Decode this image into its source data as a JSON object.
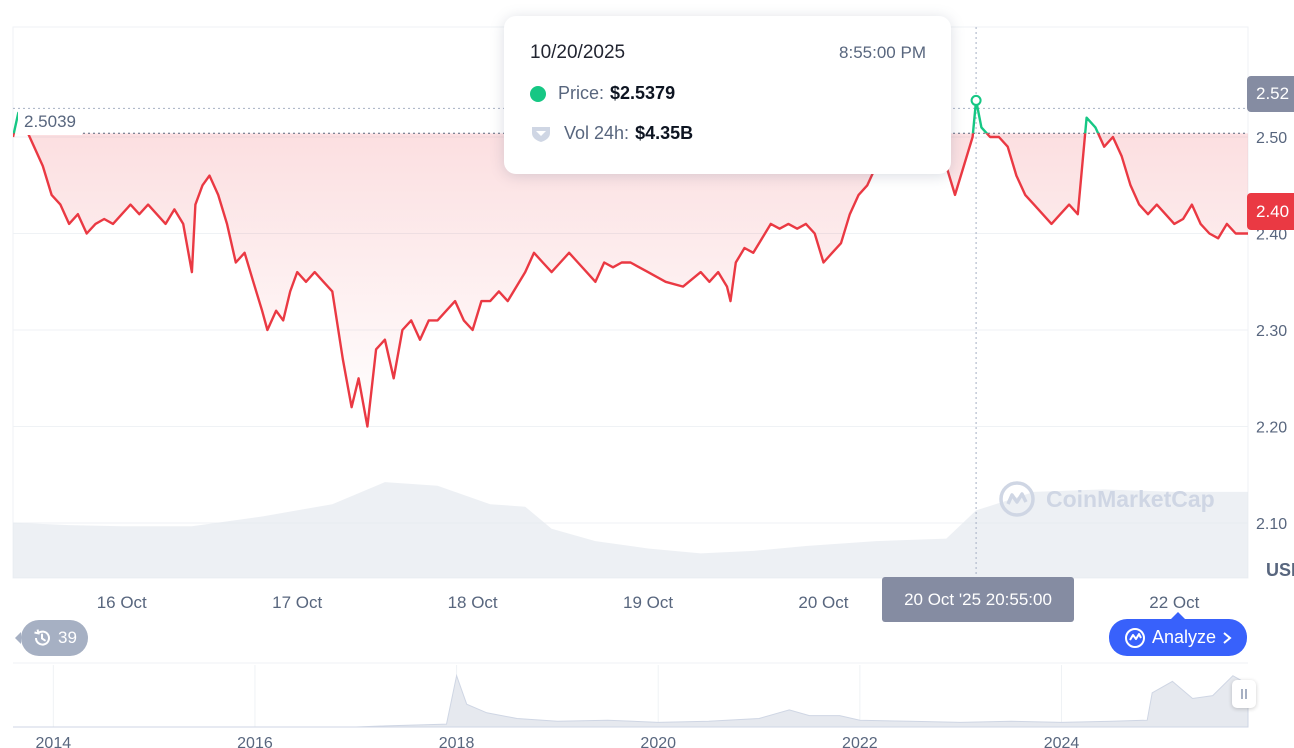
{
  "tooltip": {
    "date": "10/20/2025",
    "time": "8:55:00 PM",
    "price_label": "Price:",
    "price_value": "$2.5379",
    "vol_label": "Vol 24h:",
    "vol_value": "$4.35B"
  },
  "reference_price_label": "2.5039",
  "current_price_label": "2.40",
  "hover_price_label": "2.52",
  "crosshair_time_label": "20 Oct '25 20:55:00",
  "currency_label": "USD",
  "history_count": "39",
  "analyze_label": "Analyze",
  "watermark": "CoinMarketCap",
  "colors": {
    "up": "#16c784",
    "down": "#ea3943",
    "accent": "#3861fb"
  },
  "icons": {
    "history": "history-icon",
    "analyze": "analyze-icon",
    "chevron": "chevron-right-icon",
    "volume": "volume-icon"
  },
  "chart_data": {
    "type": "line",
    "y_ticks": [
      "2.50",
      "2.40",
      "2.30",
      "2.20",
      "2.10"
    ],
    "y_tick_values": [
      2.5,
      2.4,
      2.3,
      2.2,
      2.1
    ],
    "ylim": [
      2.043,
      2.614
    ],
    "x_ticks": [
      "16 Oct",
      "17 Oct",
      "18 Oct",
      "19 Oct",
      "20 Oct",
      "22 Oct"
    ],
    "x_tick_days": [
      16,
      17,
      18,
      19,
      20,
      22
    ],
    "xlim_days": [
      15.38,
      22.42
    ],
    "reference_price": 2.5039,
    "hover": {
      "day": 20.87,
      "price": 2.5379
    },
    "price_series": [
      [
        15.38,
        2.5
      ],
      [
        15.41,
        2.525
      ],
      [
        15.45,
        2.51
      ],
      [
        15.5,
        2.49
      ],
      [
        15.55,
        2.47
      ],
      [
        15.6,
        2.44
      ],
      [
        15.65,
        2.43
      ],
      [
        15.7,
        2.41
      ],
      [
        15.75,
        2.42
      ],
      [
        15.8,
        2.4
      ],
      [
        15.85,
        2.41
      ],
      [
        15.9,
        2.415
      ],
      [
        15.95,
        2.41
      ],
      [
        16.0,
        2.42
      ],
      [
        16.05,
        2.43
      ],
      [
        16.1,
        2.42
      ],
      [
        16.15,
        2.43
      ],
      [
        16.2,
        2.42
      ],
      [
        16.25,
        2.41
      ],
      [
        16.3,
        2.425
      ],
      [
        16.35,
        2.41
      ],
      [
        16.4,
        2.36
      ],
      [
        16.42,
        2.43
      ],
      [
        16.46,
        2.45
      ],
      [
        16.5,
        2.46
      ],
      [
        16.55,
        2.44
      ],
      [
        16.6,
        2.41
      ],
      [
        16.65,
        2.37
      ],
      [
        16.7,
        2.38
      ],
      [
        16.75,
        2.35
      ],
      [
        16.8,
        2.32
      ],
      [
        16.83,
        2.3
      ],
      [
        16.88,
        2.32
      ],
      [
        16.92,
        2.31
      ],
      [
        16.96,
        2.34
      ],
      [
        17.0,
        2.36
      ],
      [
        17.05,
        2.35
      ],
      [
        17.1,
        2.36
      ],
      [
        17.15,
        2.35
      ],
      [
        17.2,
        2.34
      ],
      [
        17.26,
        2.27
      ],
      [
        17.31,
        2.22
      ],
      [
        17.35,
        2.25
      ],
      [
        17.4,
        2.2
      ],
      [
        17.45,
        2.28
      ],
      [
        17.5,
        2.29
      ],
      [
        17.55,
        2.25
      ],
      [
        17.6,
        2.3
      ],
      [
        17.65,
        2.31
      ],
      [
        17.7,
        2.29
      ],
      [
        17.75,
        2.31
      ],
      [
        17.8,
        2.31
      ],
      [
        17.85,
        2.32
      ],
      [
        17.9,
        2.33
      ],
      [
        17.95,
        2.31
      ],
      [
        18.0,
        2.3
      ],
      [
        18.05,
        2.33
      ],
      [
        18.1,
        2.33
      ],
      [
        18.15,
        2.34
      ],
      [
        18.2,
        2.33
      ],
      [
        18.3,
        2.36
      ],
      [
        18.35,
        2.38
      ],
      [
        18.4,
        2.37
      ],
      [
        18.45,
        2.36
      ],
      [
        18.5,
        2.37
      ],
      [
        18.55,
        2.38
      ],
      [
        18.6,
        2.37
      ],
      [
        18.65,
        2.36
      ],
      [
        18.7,
        2.35
      ],
      [
        18.75,
        2.37
      ],
      [
        18.8,
        2.365
      ],
      [
        18.85,
        2.37
      ],
      [
        18.9,
        2.37
      ],
      [
        19.0,
        2.36
      ],
      [
        19.05,
        2.355
      ],
      [
        19.1,
        2.35
      ],
      [
        19.2,
        2.345
      ],
      [
        19.3,
        2.36
      ],
      [
        19.35,
        2.35
      ],
      [
        19.4,
        2.36
      ],
      [
        19.45,
        2.345
      ],
      [
        19.47,
        2.33
      ],
      [
        19.5,
        2.37
      ],
      [
        19.55,
        2.385
      ],
      [
        19.6,
        2.38
      ],
      [
        19.65,
        2.395
      ],
      [
        19.7,
        2.41
      ],
      [
        19.75,
        2.405
      ],
      [
        19.8,
        2.41
      ],
      [
        19.85,
        2.405
      ],
      [
        19.9,
        2.41
      ],
      [
        19.95,
        2.4
      ],
      [
        20.0,
        2.37
      ],
      [
        20.05,
        2.38
      ],
      [
        20.1,
        2.39
      ],
      [
        20.15,
        2.42
      ],
      [
        20.2,
        2.44
      ],
      [
        20.25,
        2.45
      ],
      [
        20.3,
        2.47
      ],
      [
        20.4,
        2.48
      ],
      [
        20.5,
        2.49
      ],
      [
        20.6,
        2.5
      ],
      [
        20.7,
        2.47
      ],
      [
        20.75,
        2.44
      ],
      [
        20.8,
        2.47
      ],
      [
        20.85,
        2.5
      ],
      [
        20.87,
        2.5379
      ],
      [
        20.9,
        2.51
      ],
      [
        20.95,
        2.5
      ],
      [
        21.0,
        2.5
      ],
      [
        21.05,
        2.49
      ],
      [
        21.1,
        2.46
      ],
      [
        21.15,
        2.44
      ],
      [
        21.2,
        2.43
      ],
      [
        21.3,
        2.41
      ],
      [
        21.35,
        2.42
      ],
      [
        21.4,
        2.43
      ],
      [
        21.45,
        2.42
      ],
      [
        21.5,
        2.52
      ],
      [
        21.55,
        2.51
      ],
      [
        21.6,
        2.49
      ],
      [
        21.65,
        2.5
      ],
      [
        21.7,
        2.48
      ],
      [
        21.75,
        2.45
      ],
      [
        21.8,
        2.43
      ],
      [
        21.85,
        2.42
      ],
      [
        21.9,
        2.43
      ],
      [
        21.95,
        2.42
      ],
      [
        22.0,
        2.41
      ],
      [
        22.05,
        2.415
      ],
      [
        22.1,
        2.43
      ],
      [
        22.15,
        2.41
      ],
      [
        22.2,
        2.4
      ],
      [
        22.25,
        2.395
      ],
      [
        22.3,
        2.41
      ],
      [
        22.35,
        2.4
      ],
      [
        22.42,
        2.4
      ]
    ],
    "volume_series": [
      [
        15.38,
        0.45
      ],
      [
        15.7,
        0.43
      ],
      [
        16.0,
        0.42
      ],
      [
        16.4,
        0.42
      ],
      [
        16.8,
        0.5
      ],
      [
        17.2,
        0.6
      ],
      [
        17.5,
        0.78
      ],
      [
        17.8,
        0.75
      ],
      [
        18.1,
        0.6
      ],
      [
        18.3,
        0.58
      ],
      [
        18.45,
        0.4
      ],
      [
        18.7,
        0.3
      ],
      [
        19.0,
        0.24
      ],
      [
        19.3,
        0.2
      ],
      [
        19.6,
        0.22
      ],
      [
        19.9,
        0.26
      ],
      [
        20.3,
        0.3
      ],
      [
        20.7,
        0.32
      ],
      [
        20.87,
        0.55
      ],
      [
        21.2,
        0.7
      ],
      [
        21.6,
        0.72
      ],
      [
        22.0,
        0.7
      ],
      [
        22.42,
        0.7
      ]
    ],
    "navigator": {
      "x_ticks": [
        "2014",
        "2016",
        "2018",
        "2020",
        "2022",
        "2024"
      ],
      "x_tick_years": [
        2014,
        2016,
        2018,
        2020,
        2022,
        2024
      ],
      "xlim_years": [
        2013.6,
        2025.85
      ],
      "series": [
        [
          2013.6,
          0.0
        ],
        [
          2017.0,
          0.0
        ],
        [
          2017.3,
          0.02
        ],
        [
          2017.9,
          0.05
        ],
        [
          2018.0,
          0.9
        ],
        [
          2018.1,
          0.4
        ],
        [
          2018.3,
          0.25
        ],
        [
          2018.6,
          0.15
        ],
        [
          2019.0,
          0.1
        ],
        [
          2019.5,
          0.12
        ],
        [
          2020.0,
          0.08
        ],
        [
          2020.5,
          0.1
        ],
        [
          2021.0,
          0.15
        ],
        [
          2021.3,
          0.3
        ],
        [
          2021.5,
          0.2
        ],
        [
          2021.8,
          0.2
        ],
        [
          2022.0,
          0.12
        ],
        [
          2022.5,
          0.1
        ],
        [
          2023.0,
          0.08
        ],
        [
          2023.5,
          0.1
        ],
        [
          2024.0,
          0.08
        ],
        [
          2024.5,
          0.1
        ],
        [
          2024.85,
          0.12
        ],
        [
          2024.9,
          0.6
        ],
        [
          2025.1,
          0.8
        ],
        [
          2025.3,
          0.5
        ],
        [
          2025.5,
          0.55
        ],
        [
          2025.7,
          0.9
        ],
        [
          2025.85,
          0.75
        ]
      ]
    }
  }
}
